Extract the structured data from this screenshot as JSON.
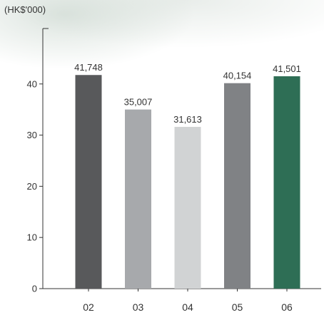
{
  "unit_label": "(HK$'000)",
  "chart_data": {
    "type": "bar",
    "title": "",
    "xlabel": "",
    "ylabel": "(HK$'000)",
    "categories": [
      "02",
      "03",
      "04",
      "05",
      "06"
    ],
    "values": [
      41748,
      35007,
      31613,
      40154,
      41501
    ],
    "value_labels": [
      "41,748",
      "35,007",
      "31,613",
      "40,154",
      "41,501"
    ],
    "bar_colors": [
      "#58595b",
      "#a7a9ac",
      "#d1d3d4",
      "#808285",
      "#2e6e55"
    ],
    "yticks": [
      0,
      10,
      20,
      30,
      40
    ],
    "ytick_labels": [
      "0",
      "10",
      "20",
      "30",
      "40"
    ],
    "ylim": [
      0,
      50000
    ],
    "grid": false,
    "legend": "none"
  }
}
